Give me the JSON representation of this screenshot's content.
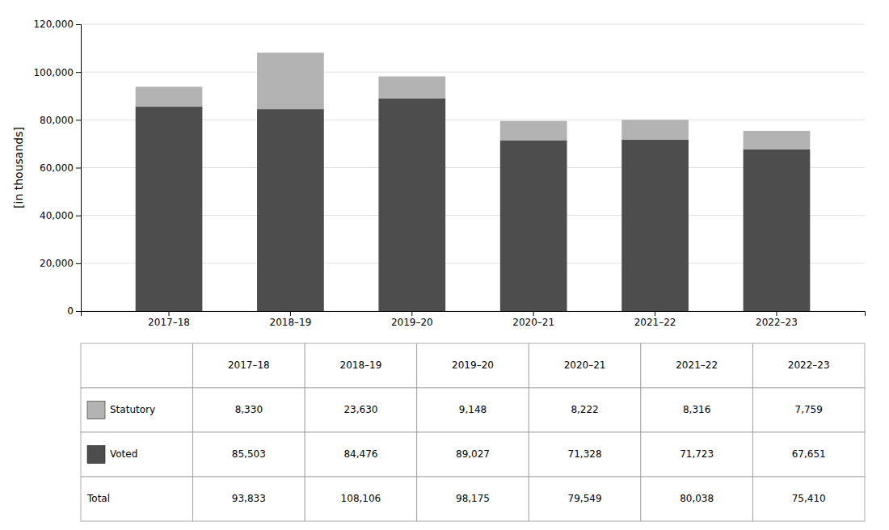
{
  "chart_data": {
    "type": "bar",
    "stacked": true,
    "categories": [
      "2017–18",
      "2018–19",
      "2019–20",
      "2020–21",
      "2021–22",
      "2022–23"
    ],
    "series": [
      {
        "name": "Voted",
        "color": "#4d4d4d",
        "values": [
          85503,
          84476,
          89027,
          71328,
          71723,
          67651
        ],
        "value_labels": [
          "85,503",
          "84,476",
          "89,027",
          "71,328",
          "71,723",
          "67,651"
        ]
      },
      {
        "name": "Statutory",
        "color": "#b3b3b3",
        "values": [
          8330,
          23630,
          9148,
          8222,
          8316,
          7759
        ],
        "value_labels": [
          "8,330",
          "23,630",
          "9,148",
          "8,222",
          "8,316",
          "7,759"
        ]
      }
    ],
    "totals": {
      "name": "Total",
      "values": [
        93833,
        108106,
        98175,
        79549,
        80038,
        75410
      ],
      "value_labels": [
        "93,833",
        "108,106",
        "98,175",
        "79,549",
        "80,038",
        "75,410"
      ]
    },
    "ylabel": "[in thousands]",
    "ylim": [
      0,
      120000
    ],
    "yticks": [
      0,
      {
        "value": 20000,
        "label": "20,000"
      },
      {
        "value": 40000,
        "label": "40,000"
      },
      {
        "value": 60000,
        "label": "60,000"
      },
      {
        "value": 80000,
        "label": "80,000"
      },
      {
        "value": 100000,
        "label": "100,000"
      },
      {
        "value": 120000,
        "label": "120,000"
      }
    ],
    "grid": true
  }
}
